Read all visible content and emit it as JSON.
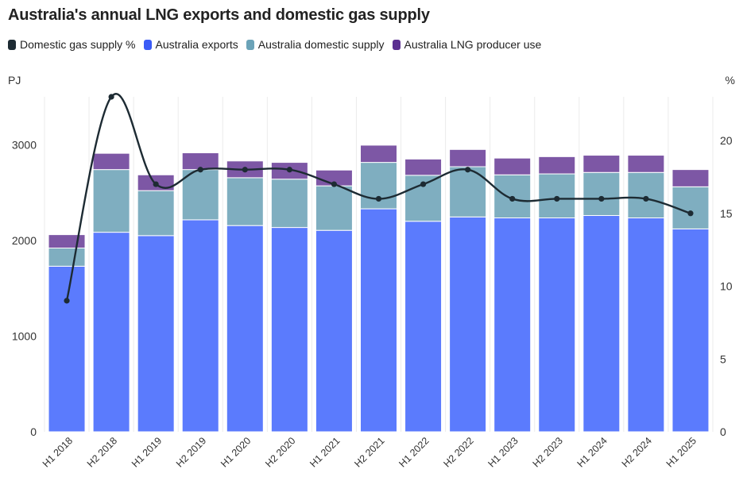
{
  "chart_data": {
    "type": "bar",
    "title": "Australia's annual LNG exports and domestic gas supply",
    "categories": [
      "H1 2018",
      "H2 2018",
      "H1 2019",
      "H2 2019",
      "H1 2020",
      "H2 2020",
      "H1 2021",
      "H2 2021",
      "H1 2022",
      "H2 2022",
      "H1 2023",
      "H2 2023",
      "H1 2024",
      "H2 2024",
      "H1 2025"
    ],
    "stacked": true,
    "series": [
      {
        "name": "Australia exports",
        "type": "bar",
        "axis": "left",
        "color": "#5b7bfd",
        "values": [
          1730,
          2085,
          2050,
          2215,
          2155,
          2135,
          2105,
          2330,
          2200,
          2245,
          2235,
          2235,
          2260,
          2235,
          2120
        ]
      },
      {
        "name": "Australia domestic supply",
        "type": "bar",
        "axis": "left",
        "color": "#7faec0",
        "values": [
          190,
          655,
          470,
          525,
          500,
          505,
          465,
          485,
          480,
          525,
          450,
          460,
          450,
          475,
          440
        ]
      },
      {
        "name": "Australia LNG producer use",
        "type": "bar",
        "axis": "left",
        "color": "#7d57a5",
        "values": [
          140,
          170,
          165,
          175,
          175,
          175,
          165,
          180,
          170,
          180,
          175,
          180,
          180,
          180,
          180
        ]
      },
      {
        "name": "Domestic gas supply %",
        "type": "line",
        "axis": "right",
        "color": "#1d2b33",
        "values": [
          9,
          23,
          17,
          18,
          18,
          18,
          17,
          16,
          17,
          18,
          16,
          16,
          16,
          16,
          15
        ]
      }
    ],
    "legend": [
      "Domestic gas supply %",
      "Australia exports",
      "Australia domestic supply",
      "Australia LNG producer use"
    ],
    "legend_colors": [
      "#1d2b33",
      "#3b5bf6",
      "#6ba3b8",
      "#5b2f91"
    ],
    "legend_position": "top-left",
    "left_axis": {
      "label": "PJ",
      "min": 0,
      "max": 3500,
      "ticks": [
        0,
        1000,
        2000,
        3000
      ]
    },
    "right_axis": {
      "label": "%",
      "min": 0,
      "max": 23,
      "ticks": [
        0,
        5,
        10,
        15,
        20
      ]
    },
    "grid": "vertical"
  }
}
